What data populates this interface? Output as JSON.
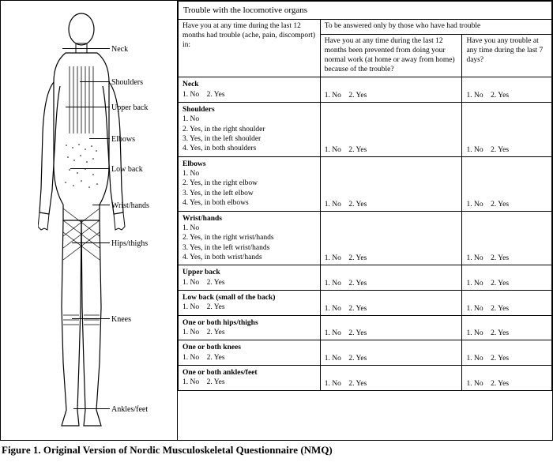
{
  "title": "Trouble with the locomotive organs",
  "header_col1": "Have you at any time during the last 12 months had trouble (ache, pain, discomport) in:",
  "header_span": "To be answered only by those who have had trouble",
  "header_col2": "Have you at any time during the last 12 months been prevented from doing your normal work (at home or away from home) because of the trouble?",
  "header_col3": "Have you any trouble at any time during the last 7 days?",
  "answer_noyes": "1. No    2. Yes",
  "rows": [
    {
      "name": "Neck",
      "opts": [
        "1. No    2. Yes"
      ]
    },
    {
      "name": "Shoulders",
      "opts": [
        "1. No",
        "2. Yes, in the right shoulder",
        "3. Yes, in the left shoulder",
        "4. Yes, in both shoulders"
      ]
    },
    {
      "name": "Elbows",
      "opts": [
        "1. No",
        "2. Yes, in the right elbow",
        "3. Yes, in the left elbow",
        "4. Yes, in both elbows"
      ]
    },
    {
      "name": "Wrist/hands",
      "opts": [
        "1. No",
        "2. Yes, in the right wrist/hands",
        "3. Yes, in the left wrist/hands",
        "4. Yes, in both wrist/hands"
      ]
    },
    {
      "name": "Upper back",
      "opts": [
        "1. No    2. Yes"
      ]
    },
    {
      "name": "Low back (small of the back)",
      "opts": [
        "1. No    2. Yes"
      ]
    },
    {
      "name": "One or both hips/thighs",
      "opts": [
        "1. No    2. Yes"
      ]
    },
    {
      "name": "One or both knees",
      "opts": [
        "1. No    2. Yes"
      ]
    },
    {
      "name": "One or both ankles/feet",
      "opts": [
        "1. No    2. Yes"
      ]
    }
  ],
  "body_labels": {
    "neck": "Neck",
    "shoulders": "Shoulders",
    "upper_back": "Upper back",
    "elbows": "Elbows",
    "low_back": "Low back",
    "wrist_hands": "Wrist/hands",
    "hips_thighs": "Hips/thighs",
    "knees": "Knees",
    "ankles_feet": "Ankles/feet"
  },
  "caption": "Figure 1. Original Version of Nordic Musculoskeletal Questionnaire (NMQ)",
  "colors": {
    "border": "#000000",
    "text": "#000000",
    "bg": "#ffffff"
  },
  "col_widths_pct": [
    38,
    38,
    24
  ]
}
